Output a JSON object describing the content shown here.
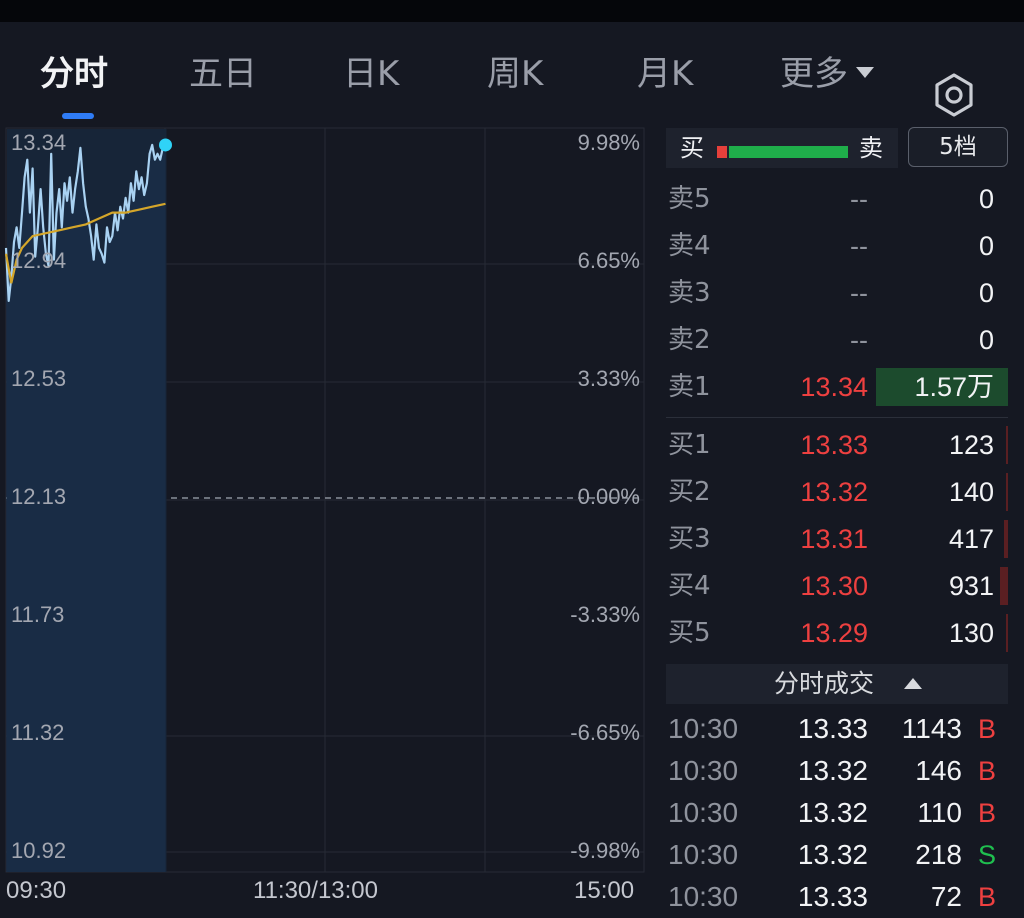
{
  "tabs": [
    {
      "label": "分时",
      "active": true
    },
    {
      "label": "五日",
      "active": false
    },
    {
      "label": "日K",
      "active": false
    },
    {
      "label": "周K",
      "active": false
    },
    {
      "label": "月K",
      "active": false
    },
    {
      "label": "更多",
      "active": false
    }
  ],
  "icons": {
    "settings": "hexagon-settings-icon",
    "more": "caret-down-icon"
  },
  "colors": {
    "up": "#ee4040",
    "down": "#1fae4a",
    "price_line": "#a9d2f2",
    "avg_line": "#d4a62a",
    "accent": "#2f7cf6"
  },
  "chart_data": {
    "type": "line",
    "x_ticks": [
      "09:30",
      "11:30/13:00",
      "15:00"
    ],
    "y_ticks_left": [
      "13.34",
      "12.94",
      "12.53",
      "12.13",
      "11.73",
      "11.32",
      "10.92"
    ],
    "y_ticks_right": [
      "9.98%",
      "6.65%",
      "3.33%",
      "0.00%",
      "-3.33%",
      "-6.65%",
      "-9.98%"
    ],
    "ylim": [
      10.92,
      13.34
    ],
    "prev_close": 12.13,
    "session_minutes": 240,
    "series": [
      {
        "role": "price",
        "x": [
          0,
          1,
          2,
          3,
          4,
          5,
          6,
          7,
          8,
          9,
          10,
          11,
          12,
          13,
          14,
          15,
          16,
          17,
          18,
          19,
          20,
          21,
          22,
          23,
          24,
          25,
          26,
          27,
          28,
          29,
          30,
          31,
          32,
          33,
          34,
          35,
          36,
          37,
          38,
          39,
          40,
          41,
          42,
          43,
          44,
          45,
          46,
          47,
          48,
          49,
          50,
          51,
          52,
          53,
          54,
          55,
          56,
          57,
          58,
          59,
          60
        ],
        "values": [
          12.98,
          12.8,
          12.88,
          13.0,
          13.05,
          12.98,
          13.1,
          13.22,
          13.28,
          13.1,
          13.25,
          12.95,
          13.05,
          13.18,
          13.05,
          12.96,
          12.92,
          13.3,
          12.94,
          13.1,
          13.18,
          13.05,
          13.2,
          13.14,
          13.22,
          13.1,
          13.18,
          13.24,
          13.32,
          13.2,
          13.12,
          13.08,
          13.02,
          12.94,
          13.06,
          12.98,
          12.96,
          12.93,
          13.05,
          13.0,
          13.02,
          13.1,
          13.04,
          13.12,
          13.08,
          13.15,
          13.1,
          13.2,
          13.14,
          13.24,
          13.18,
          13.22,
          13.16,
          13.2,
          13.3,
          13.33,
          13.28,
          13.3,
          13.28,
          13.32,
          13.33
        ]
      },
      {
        "role": "average",
        "x": [
          0,
          2,
          4,
          6,
          8,
          10,
          15,
          20,
          25,
          30,
          35,
          40,
          45,
          50,
          55,
          60
        ],
        "values": [
          12.96,
          12.86,
          12.94,
          12.98,
          13.0,
          13.02,
          13.03,
          13.04,
          13.05,
          13.06,
          13.08,
          13.1,
          13.1,
          13.11,
          13.12,
          13.13
        ]
      }
    ]
  },
  "book": {
    "buy_label": "买",
    "sell_label": "卖",
    "levels_button": "5档",
    "buy_ratio": 0.08,
    "asks": [
      {
        "label": "卖5",
        "price": "--",
        "volume": "0",
        "bar": 0
      },
      {
        "label": "卖4",
        "price": "--",
        "volume": "0",
        "bar": 0
      },
      {
        "label": "卖3",
        "price": "--",
        "volume": "0",
        "bar": 0
      },
      {
        "label": "卖2",
        "price": "--",
        "volume": "0",
        "bar": 0
      },
      {
        "label": "卖1",
        "price": "13.34",
        "volume": "1.57万",
        "bar": 1.0
      }
    ],
    "bids": [
      {
        "label": "买1",
        "price": "13.33",
        "volume": "123",
        "bar": 0.01
      },
      {
        "label": "买2",
        "price": "13.32",
        "volume": "140",
        "bar": 0.01
      },
      {
        "label": "买3",
        "price": "13.31",
        "volume": "417",
        "bar": 0.03
      },
      {
        "label": "买4",
        "price": "13.30",
        "volume": "931",
        "bar": 0.06
      },
      {
        "label": "买5",
        "price": "13.29",
        "volume": "130",
        "bar": 0.01
      }
    ]
  },
  "trades": {
    "title": "分时成交",
    "rows": [
      {
        "time": "10:30",
        "price": "13.33",
        "volume": "1143",
        "side": "B"
      },
      {
        "time": "10:30",
        "price": "13.32",
        "volume": "146",
        "side": "B"
      },
      {
        "time": "10:30",
        "price": "13.32",
        "volume": "110",
        "side": "B"
      },
      {
        "time": "10:30",
        "price": "13.32",
        "volume": "218",
        "side": "S"
      },
      {
        "time": "10:30",
        "price": "13.33",
        "volume": "72",
        "side": "B"
      }
    ]
  }
}
